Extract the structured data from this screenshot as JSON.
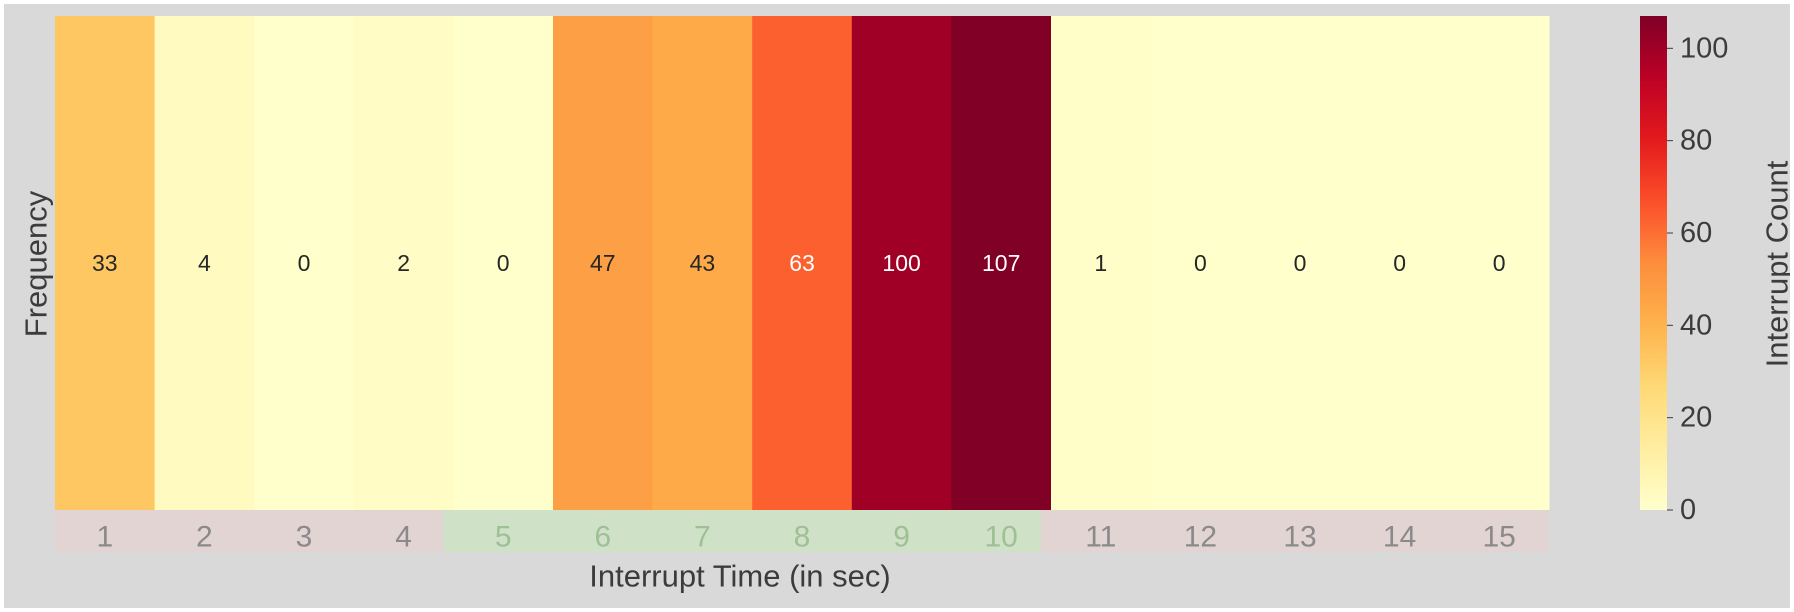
{
  "chart_data": {
    "type": "heatmap",
    "title": "",
    "xlabel": "Interrupt Time (in sec)",
    "ylabel": "Frequency",
    "categories": [
      "1",
      "2",
      "3",
      "4",
      "5",
      "6",
      "7",
      "8",
      "9",
      "10",
      "11",
      "12",
      "13",
      "14",
      "15"
    ],
    "values": [
      33,
      4,
      0,
      2,
      0,
      47,
      43,
      63,
      100,
      107,
      1,
      0,
      0,
      0,
      0
    ],
    "colorbar": {
      "label": "Interrupt Count",
      "ticks": [
        0,
        20,
        40,
        60,
        80,
        100
      ],
      "range": [
        0,
        107
      ],
      "colormap": "YlOrRd"
    },
    "highlight_range": [
      "5",
      "10"
    ],
    "colors": {
      "figure_background": "#d9d9d9",
      "tick_band_default": "#e3d4d4",
      "tick_band_highlight": "#cfe2c8",
      "tick_text_default": "#8a8a8a",
      "tick_text_highlight": "#9fbf95"
    },
    "grid": false
  }
}
